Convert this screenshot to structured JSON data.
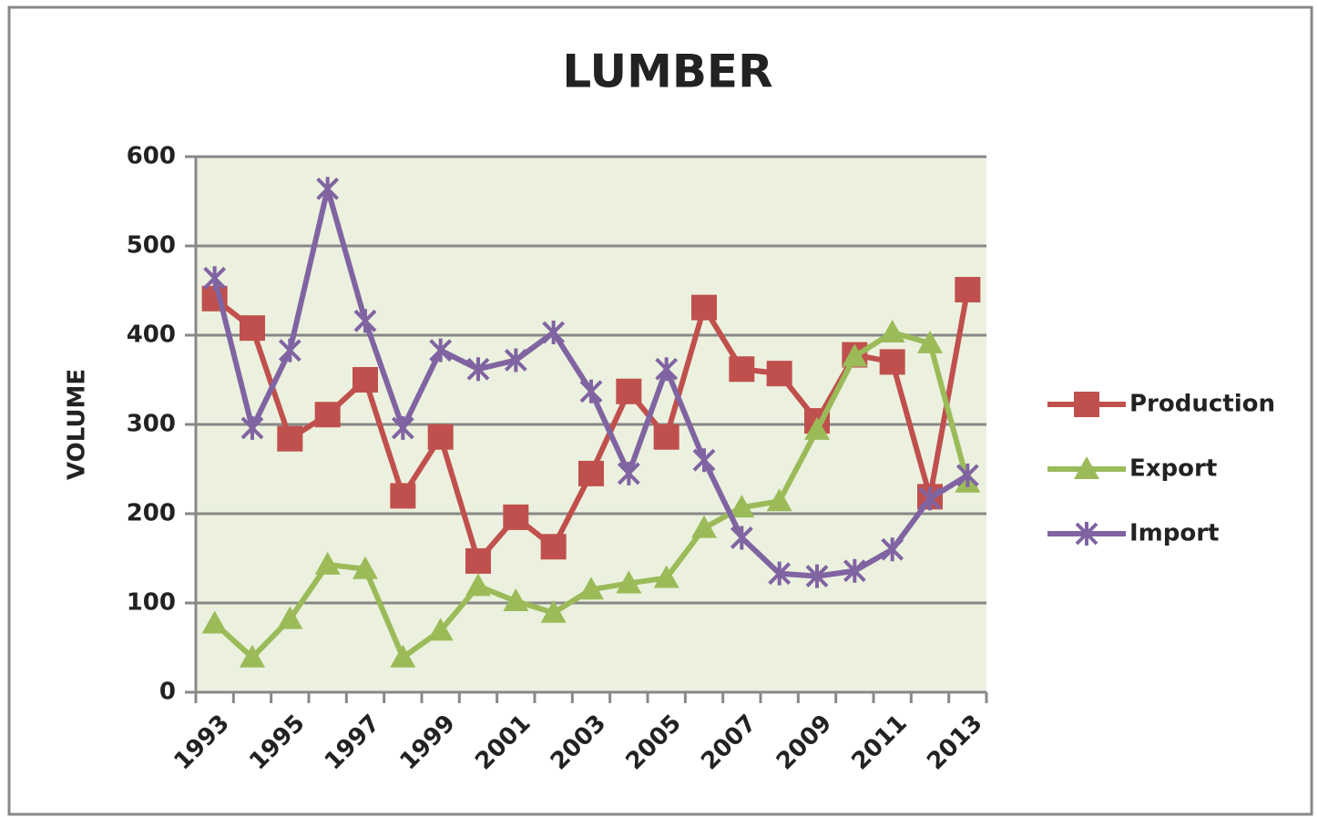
{
  "chart_data": {
    "type": "line",
    "title": "LUMBER",
    "y_label": "VOLUME",
    "categories": [
      "1993",
      null,
      "1995",
      null,
      "1997",
      null,
      "1999",
      null,
      "2001",
      null,
      "2003",
      null,
      "2005",
      null,
      "2007",
      null,
      "2009",
      null,
      "2011",
      null,
      "2013"
    ],
    "series": [
      {
        "name": "Production",
        "color": "#c0504d",
        "marker": "square",
        "values": [
          441,
          408,
          284,
          311,
          350,
          220,
          286,
          147,
          196,
          163,
          245,
          337,
          286,
          431,
          362,
          357,
          304,
          378,
          370,
          219,
          451
        ]
      },
      {
        "name": "Export",
        "color": "#9bbb59",
        "marker": "triangle",
        "values": [
          77,
          39,
          82,
          143,
          138,
          39,
          69,
          119,
          102,
          89,
          115,
          122,
          128,
          184,
          207,
          214,
          294,
          376,
          403,
          391,
          235
        ]
      },
      {
        "name": "Import",
        "color": "#8064a2",
        "marker": "x",
        "values": [
          464,
          296,
          383,
          564,
          416,
          296,
          383,
          362,
          372,
          403,
          337,
          245,
          362,
          260,
          173,
          133,
          130,
          136,
          160,
          217,
          243
        ]
      }
    ],
    "ylim": [
      0,
      600
    ],
    "yticks": [
      0,
      100,
      200,
      300,
      400,
      500,
      600
    ],
    "grid": true,
    "legend": "right"
  }
}
